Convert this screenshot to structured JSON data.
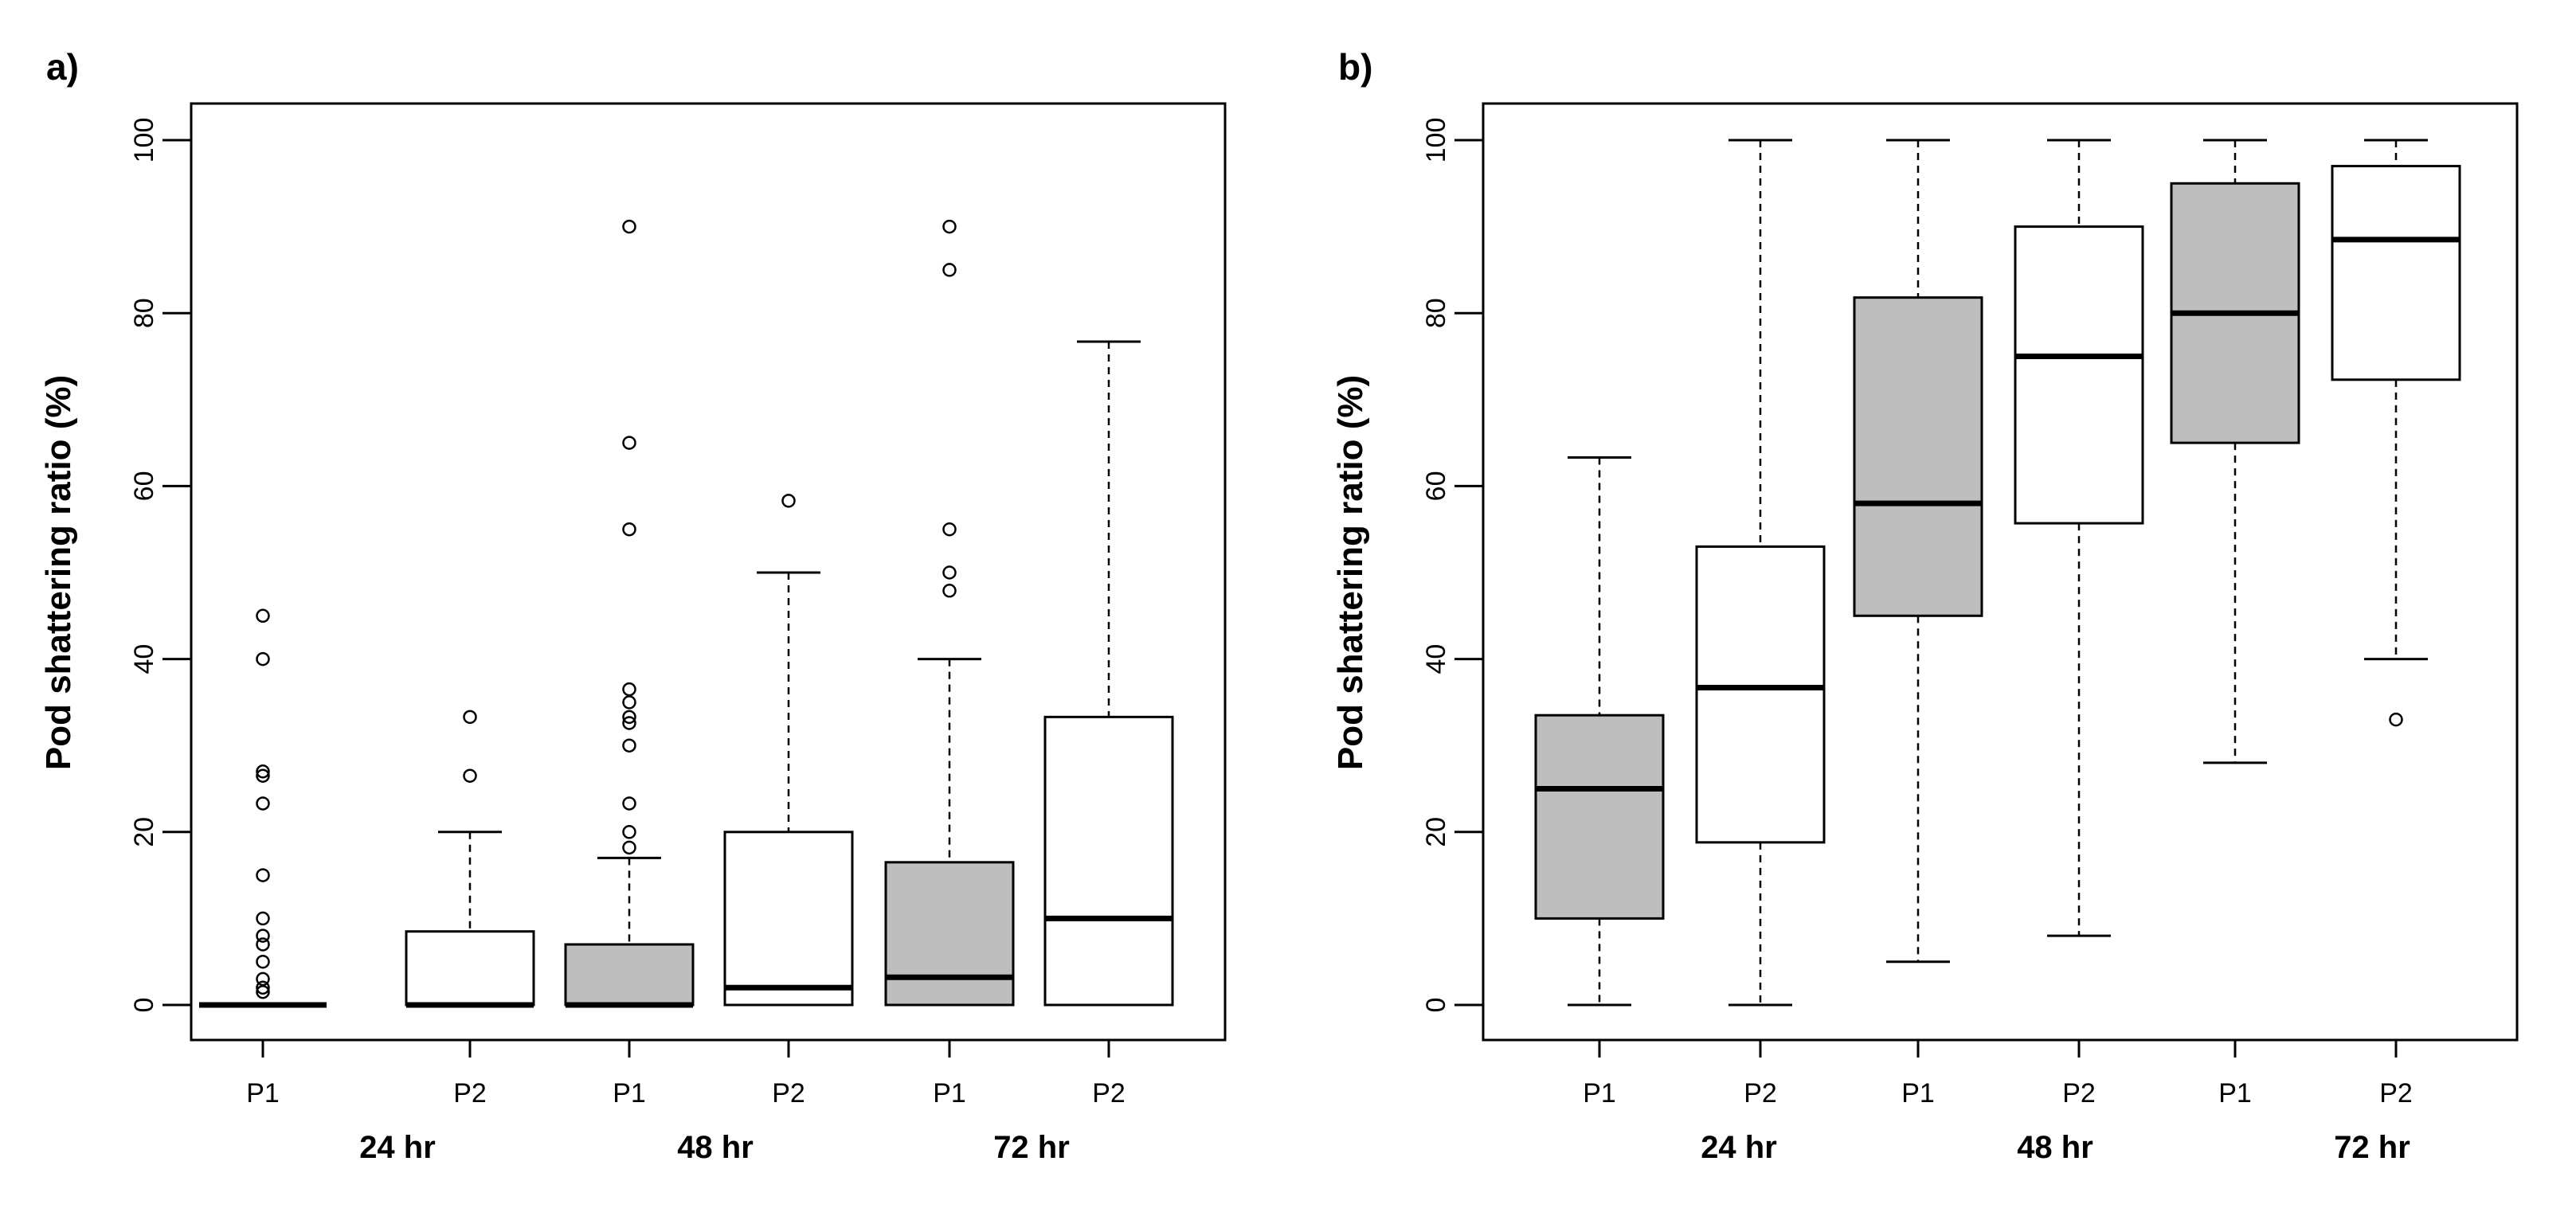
{
  "chart_data": [
    {
      "panel": "a)",
      "type": "box",
      "ylabel": "Pod shattering ratio (%)",
      "ylim": [
        0,
        100
      ],
      "yticks": [
        0,
        20,
        40,
        60,
        80,
        100
      ],
      "groups": [
        "24 hr",
        "48 hr",
        "72 hr"
      ],
      "colors": {
        "P1": "#bebebe",
        "P2": "#ffffff"
      },
      "boxes": [
        {
          "label": "P1",
          "group": "24 hr",
          "fill": "#bebebe",
          "min": 0,
          "q1": 0,
          "median": 0,
          "q3": 0,
          "max": 0,
          "outliers": [
            1.5,
            2,
            3,
            5,
            7,
            8,
            10,
            15,
            23.3,
            26.5,
            27,
            40,
            45
          ]
        },
        {
          "label": "P2",
          "group": "24 hr",
          "fill": "#ffffff",
          "min": 0,
          "q1": 0,
          "median": 0,
          "q3": 8.5,
          "max": 20,
          "outliers": [
            26.5,
            33.3
          ]
        },
        {
          "label": "P1",
          "group": "48 hr",
          "fill": "#bebebe",
          "min": 0,
          "q1": 0,
          "median": 0,
          "q3": 7,
          "max": 17,
          "outliers": [
            18.2,
            20,
            23.3,
            30,
            32.6,
            33.3,
            35,
            36.5,
            55,
            65,
            90
          ]
        },
        {
          "label": "P2",
          "group": "48 hr",
          "fill": "#ffffff",
          "min": 0,
          "q1": 0,
          "median": 2,
          "q3": 20,
          "max": 50,
          "outliers": [
            58.3
          ]
        },
        {
          "label": "P1",
          "group": "72 hr",
          "fill": "#bebebe",
          "min": 0,
          "q1": 0,
          "median": 3.2,
          "q3": 16.5,
          "max": 40,
          "outliers": [
            47.9,
            50,
            55,
            85,
            90
          ]
        },
        {
          "label": "P2",
          "group": "72 hr",
          "fill": "#ffffff",
          "min": 0,
          "q1": 0,
          "median": 10,
          "q3": 33.3,
          "max": 76.7,
          "outliers": []
        }
      ]
    },
    {
      "panel": "b)",
      "type": "box",
      "ylabel": "Pod shattering ratio (%)",
      "ylim": [
        0,
        100
      ],
      "yticks": [
        0,
        20,
        40,
        60,
        80,
        100
      ],
      "groups": [
        "24 hr",
        "48 hr",
        "72 hr"
      ],
      "colors": {
        "P1": "#bebebe",
        "P2": "#ffffff"
      },
      "boxes": [
        {
          "label": "P1",
          "group": "24 hr",
          "fill": "#bebebe",
          "min": 0,
          "q1": 10,
          "median": 25,
          "q3": 33.5,
          "max": 63.3,
          "outliers": []
        },
        {
          "label": "P2",
          "group": "24 hr",
          "fill": "#ffffff",
          "min": 0,
          "q1": 18.8,
          "median": 36.7,
          "q3": 53,
          "max": 100,
          "outliers": []
        },
        {
          "label": "P1",
          "group": "48 hr",
          "fill": "#bebebe",
          "min": 5,
          "q1": 45,
          "median": 58,
          "q3": 81.8,
          "max": 100,
          "outliers": []
        },
        {
          "label": "P2",
          "group": "48 hr",
          "fill": "#ffffff",
          "min": 8,
          "q1": 55.7,
          "median": 75,
          "q3": 90,
          "max": 100,
          "outliers": []
        },
        {
          "label": "P1",
          "group": "72 hr",
          "fill": "#bebebe",
          "min": 28,
          "q1": 65,
          "median": 80,
          "q3": 95,
          "max": 100,
          "outliers": []
        },
        {
          "label": "P2",
          "group": "72 hr",
          "fill": "#ffffff",
          "min": 40,
          "q1": 72.3,
          "median": 88.5,
          "q3": 97,
          "max": 100,
          "outliers": [
            33
          ]
        }
      ]
    }
  ]
}
